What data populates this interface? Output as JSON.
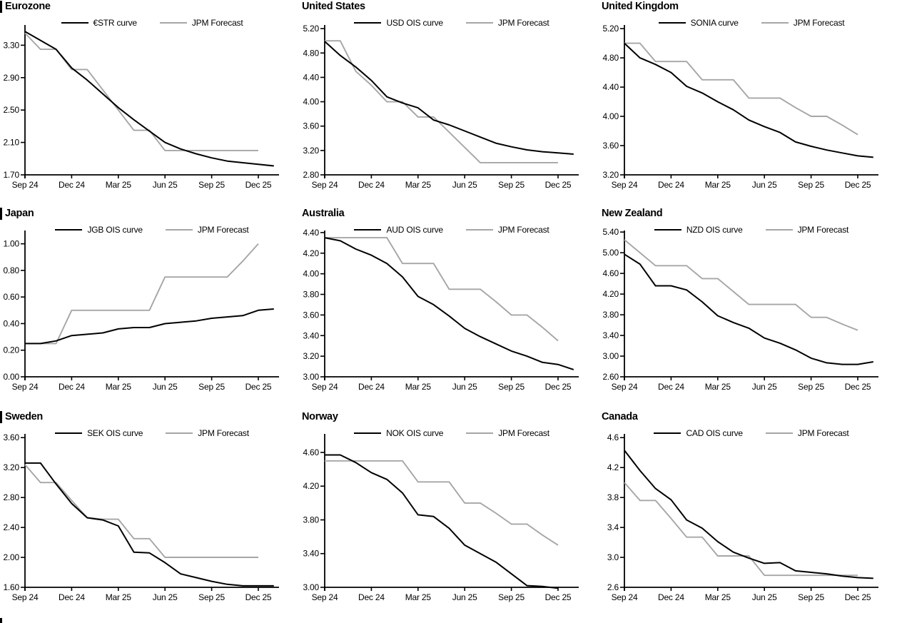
{
  "page": {
    "background": "#ffffff",
    "accent_black": "#000000",
    "accent_gray": "#a6a6a6"
  },
  "next_section_marker": true,
  "chart_data": [
    {
      "type": "line",
      "title": "Eurozone",
      "title_bar": true,
      "x_labels": [
        "Sep 24",
        "Dec 24",
        "Mar 25",
        "Jun 25",
        "Sep 25",
        "Dec 25"
      ],
      "y_ticks": [
        "1.70",
        "2.10",
        "2.50",
        "2.90",
        "3.30"
      ],
      "y_min": 1.7,
      "y_axis_top": 3.55,
      "legend": [
        "€STR curve",
        "JPM Forecast"
      ],
      "series": [
        {
          "name": "€STR curve",
          "color": "#000000",
          "values": [
            3.47,
            3.36,
            3.25,
            3.02,
            2.87,
            2.7,
            2.53,
            2.38,
            2.24,
            2.1,
            2.02,
            1.96,
            1.91,
            1.87,
            1.85,
            1.83,
            1.81
          ]
        },
        {
          "name": "JPM Forecast",
          "color": "#a6a6a6",
          "values": [
            3.45,
            3.25,
            3.25,
            3.0,
            3.0,
            2.75,
            2.5,
            2.25,
            2.25,
            2.0,
            2.0,
            2.0,
            2.0,
            2.0,
            2.0,
            2.0
          ]
        }
      ]
    },
    {
      "type": "line",
      "title": "United States",
      "title_bar": false,
      "x_labels": [
        "Sep 24",
        "Dec 24",
        "Mar 25",
        "Jun 25",
        "Sep 25",
        "Dec 25"
      ],
      "y_ticks": [
        "2.80",
        "3.20",
        "3.60",
        "4.00",
        "4.40",
        "4.80",
        "5.20"
      ],
      "y_min": 2.8,
      "y_axis_top": 5.26,
      "legend": [
        "USD OIS curve",
        "JPM Forecast"
      ],
      "series": [
        {
          "name": "USD OIS curve",
          "color": "#000000",
          "values": [
            4.99,
            4.76,
            4.57,
            4.35,
            4.08,
            3.98,
            3.9,
            3.7,
            3.62,
            3.52,
            3.42,
            3.32,
            3.26,
            3.21,
            3.18,
            3.16,
            3.14
          ]
        },
        {
          "name": "JPM Forecast",
          "color": "#a6a6a6",
          "values": [
            5.0,
            5.0,
            4.5,
            4.27,
            4.0,
            4.0,
            3.75,
            3.75,
            3.5,
            3.25,
            3.0,
            3.0,
            3.0,
            3.0,
            3.0,
            3.0
          ]
        }
      ]
    },
    {
      "type": "line",
      "title": "United Kingdom",
      "title_bar": false,
      "x_labels": [
        "Sep 24",
        "Dec 24",
        "Mar 25",
        "Jun 25",
        "Sep 25",
        "Dec 25"
      ],
      "y_ticks": [
        "3.20",
        "3.60",
        "4.00",
        "4.40",
        "4.80",
        "5.20"
      ],
      "y_min": 3.2,
      "y_axis_top": 5.25,
      "legend": [
        "SONIA curve",
        "JPM Forecast"
      ],
      "series": [
        {
          "name": "SONIA curve",
          "color": "#000000",
          "values": [
            5.0,
            4.8,
            4.71,
            4.6,
            4.41,
            4.32,
            4.2,
            4.09,
            3.95,
            3.86,
            3.78,
            3.65,
            3.59,
            3.54,
            3.5,
            3.46,
            3.44
          ]
        },
        {
          "name": "JPM Forecast",
          "color": "#a6a6a6",
          "values": [
            5.0,
            5.0,
            4.75,
            4.75,
            4.75,
            4.5,
            4.5,
            4.5,
            4.25,
            4.25,
            4.25,
            4.12,
            4.0,
            4.0,
            3.88,
            3.75
          ]
        }
      ]
    },
    {
      "type": "line",
      "title": "Japan",
      "title_bar": true,
      "x_labels": [
        "Sep 24",
        "Dec 24",
        "Mar 25",
        "Jun 25",
        "Sep 25",
        "Dec 25"
      ],
      "y_ticks": [
        "0.00",
        "0.20",
        "0.40",
        "0.60",
        "0.80",
        "1.00"
      ],
      "y_min": 0.0,
      "y_axis_top": 1.1,
      "legend": [
        "JGB OIS curve",
        "JPM Forecast"
      ],
      "series": [
        {
          "name": "JGB OIS curve",
          "color": "#000000",
          "values": [
            0.25,
            0.25,
            0.27,
            0.31,
            0.32,
            0.33,
            0.36,
            0.37,
            0.37,
            0.4,
            0.41,
            0.42,
            0.44,
            0.45,
            0.46,
            0.5,
            0.51
          ]
        },
        {
          "name": "JPM Forecast",
          "color": "#a6a6a6",
          "values": [
            0.25,
            0.25,
            0.25,
            0.5,
            0.5,
            0.5,
            0.5,
            0.5,
            0.5,
            0.75,
            0.75,
            0.75,
            0.75,
            0.75,
            0.87,
            1.0
          ]
        }
      ]
    },
    {
      "type": "line",
      "title": "Australia",
      "title_bar": false,
      "x_labels": [
        "Sep 24",
        "Dec 24",
        "Mar 25",
        "Jun 25",
        "Sep 25",
        "Dec 25"
      ],
      "y_ticks": [
        "3.00",
        "3.20",
        "3.40",
        "3.60",
        "3.80",
        "4.00",
        "4.20",
        "4.40"
      ],
      "y_min": 3.0,
      "y_axis_top": 4.42,
      "legend": [
        "AUD OIS curve",
        "JPM Forecast"
      ],
      "series": [
        {
          "name": "AUD OIS curve",
          "color": "#000000",
          "values": [
            4.35,
            4.32,
            4.24,
            4.18,
            4.1,
            3.97,
            3.78,
            3.7,
            3.59,
            3.47,
            3.39,
            3.32,
            3.25,
            3.2,
            3.14,
            3.12,
            3.07
          ]
        },
        {
          "name": "JPM Forecast",
          "color": "#a6a6a6",
          "values": [
            4.35,
            4.35,
            4.35,
            4.35,
            4.35,
            4.1,
            4.1,
            4.1,
            3.85,
            3.85,
            3.85,
            3.73,
            3.6,
            3.6,
            3.48,
            3.35
          ]
        }
      ]
    },
    {
      "type": "line",
      "title": "New Zealand",
      "title_bar": false,
      "x_labels": [
        "Sep 24",
        "Dec 24",
        "Mar 25",
        "Jun 25",
        "Sep 25",
        "Dec 25"
      ],
      "y_ticks": [
        "2.60",
        "3.00",
        "3.40",
        "3.80",
        "4.20",
        "4.60",
        "5.00",
        "5.40"
      ],
      "y_min": 2.6,
      "y_axis_top": 5.43,
      "legend": [
        "NZD OIS curve",
        "JPM Forecast"
      ],
      "series": [
        {
          "name": "NZD OIS curve",
          "color": "#000000",
          "values": [
            4.97,
            4.78,
            4.36,
            4.36,
            4.28,
            4.05,
            3.78,
            3.65,
            3.54,
            3.35,
            3.25,
            3.12,
            2.96,
            2.87,
            2.84,
            2.84,
            2.89
          ]
        },
        {
          "name": "JPM Forecast",
          "color": "#a6a6a6",
          "values": [
            5.25,
            5.0,
            4.75,
            4.75,
            4.75,
            4.5,
            4.5,
            4.25,
            4.0,
            4.0,
            4.0,
            4.0,
            3.75,
            3.75,
            3.62,
            3.5
          ]
        }
      ]
    },
    {
      "type": "line",
      "title": "Sweden",
      "title_bar": true,
      "x_labels": [
        "Sep 24",
        "Dec 24",
        "Mar 25",
        "Jun 25",
        "Sep 25",
        "Dec 25"
      ],
      "y_ticks": [
        "1.60",
        "2.00",
        "2.40",
        "2.80",
        "3.20",
        "3.60"
      ],
      "y_min": 1.6,
      "y_axis_top": 3.65,
      "legend": [
        "SEK OIS curve",
        "JPM Forecast"
      ],
      "series": [
        {
          "name": "SEK OIS curve",
          "color": "#000000",
          "values": [
            3.26,
            3.26,
            2.98,
            2.72,
            2.53,
            2.5,
            2.42,
            2.07,
            2.06,
            1.93,
            1.78,
            1.73,
            1.68,
            1.64,
            1.62,
            1.62,
            1.62
          ]
        },
        {
          "name": "JPM Forecast",
          "color": "#a6a6a6",
          "values": [
            3.24,
            3.0,
            3.0,
            2.76,
            2.53,
            2.51,
            2.51,
            2.25,
            2.25,
            2.0,
            2.0,
            2.0,
            2.0,
            2.0,
            2.0,
            2.0
          ]
        }
      ]
    },
    {
      "type": "line",
      "title": "Norway",
      "title_bar": false,
      "x_labels": [
        "Sep 24",
        "Dec 24",
        "Mar 25",
        "Jun 25",
        "Sep 25",
        "Dec 25"
      ],
      "y_ticks": [
        "3.00",
        "3.40",
        "3.80",
        "4.20",
        "4.60"
      ],
      "y_min": 3.0,
      "y_axis_top": 4.82,
      "legend": [
        "NOK OIS curve",
        "JPM Forecast"
      ],
      "series": [
        {
          "name": "NOK OIS curve",
          "color": "#000000",
          "values": [
            4.57,
            4.57,
            4.48,
            4.36,
            4.28,
            4.12,
            3.86,
            3.84,
            3.7,
            3.5,
            3.4,
            3.3,
            3.16,
            3.02,
            3.01,
            2.99
          ]
        },
        {
          "name": "JPM Forecast",
          "color": "#a6a6a6",
          "values": [
            4.5,
            4.5,
            4.5,
            4.5,
            4.5,
            4.5,
            4.25,
            4.25,
            4.25,
            4.0,
            4.0,
            3.88,
            3.75,
            3.75,
            3.62,
            3.5
          ]
        }
      ]
    },
    {
      "type": "line",
      "title": "Canada",
      "title_bar": false,
      "x_labels": [
        "Sep 24",
        "Dec 24",
        "Mar 25",
        "Jun 25",
        "Sep 25",
        "Dec 25"
      ],
      "y_ticks": [
        "2.6",
        "3.0",
        "3.4",
        "3.8",
        "4.2",
        "4.6"
      ],
      "y_min": 2.6,
      "y_axis_top": 4.65,
      "legend": [
        "CAD OIS curve",
        "JPM Forecast"
      ],
      "series": [
        {
          "name": "CAD OIS curve",
          "color": "#000000",
          "values": [
            4.43,
            4.16,
            3.92,
            3.77,
            3.5,
            3.39,
            3.21,
            3.07,
            2.99,
            2.92,
            2.93,
            2.82,
            2.8,
            2.78,
            2.75,
            2.73,
            2.72
          ]
        },
        {
          "name": "JPM Forecast",
          "color": "#a6a6a6",
          "values": [
            4.0,
            3.76,
            3.76,
            3.52,
            3.27,
            3.27,
            3.02,
            3.02,
            3.02,
            2.76,
            2.76,
            2.76,
            2.76,
            2.76,
            2.76,
            2.76
          ]
        }
      ]
    }
  ]
}
